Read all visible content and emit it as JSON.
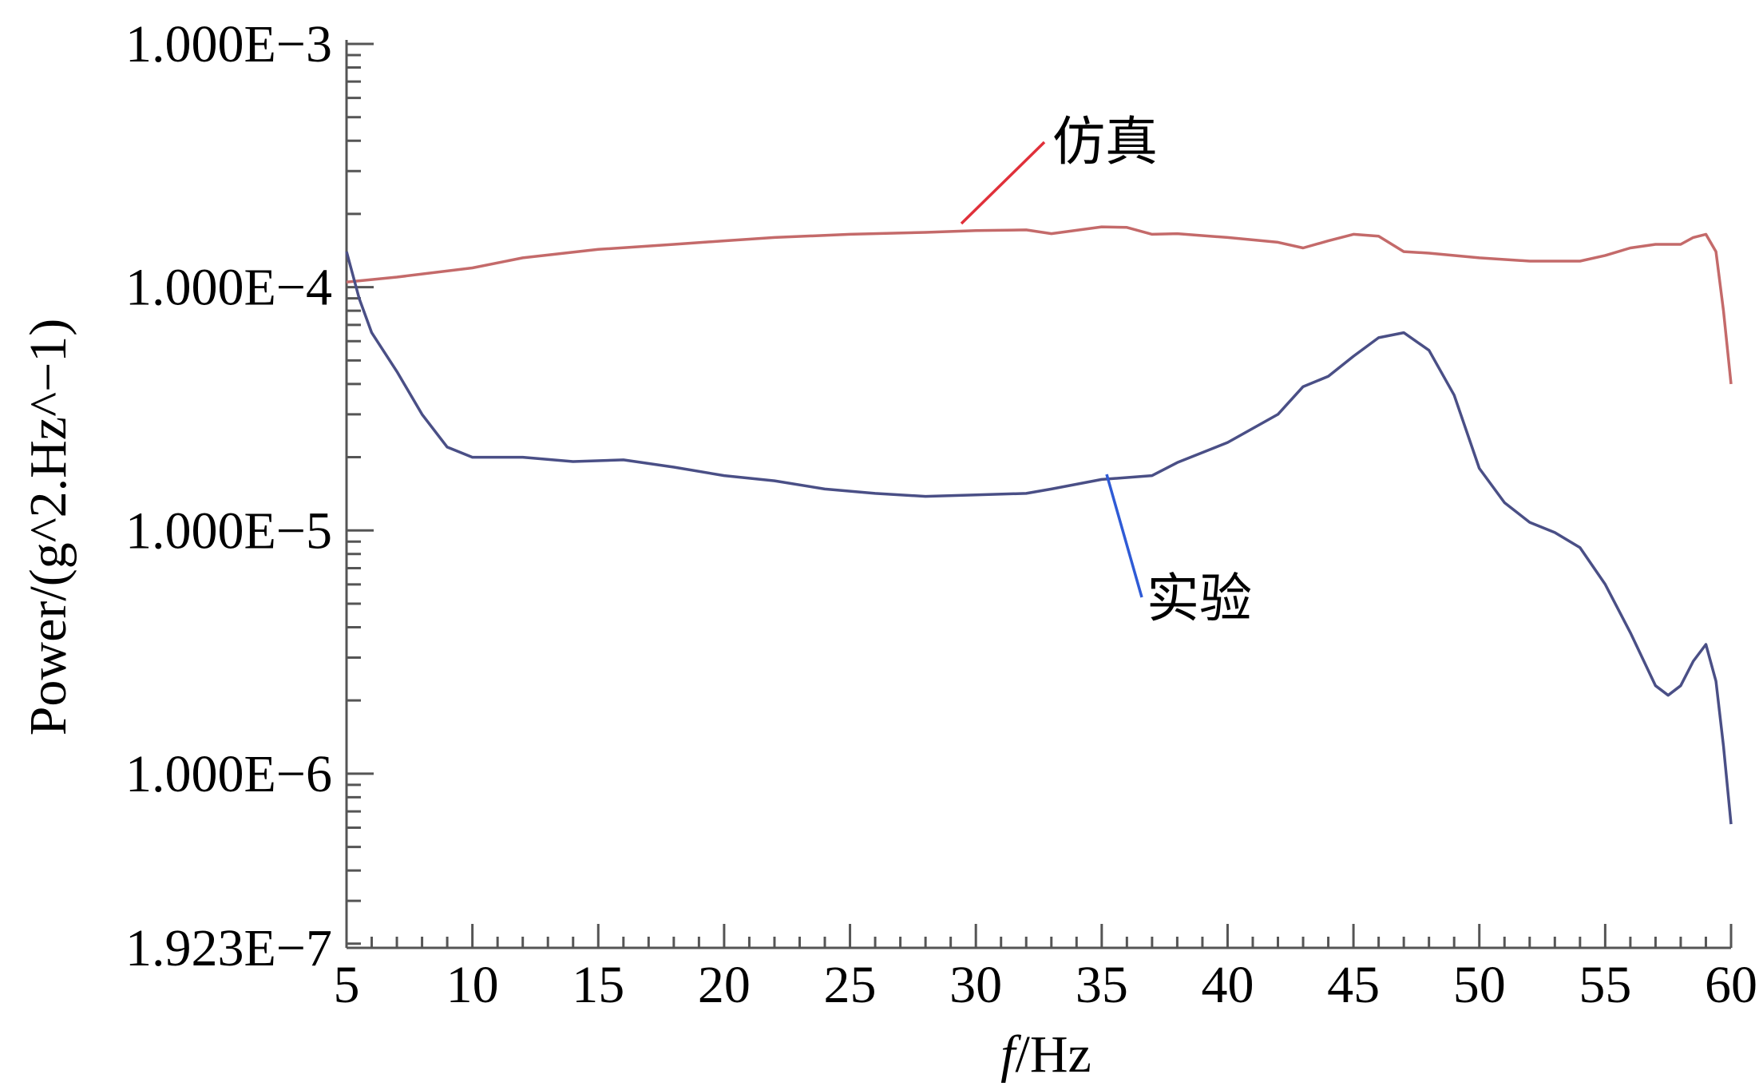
{
  "chart_data": {
    "type": "line",
    "xlabel_italic": "f",
    "xlabel_rest": "/Hz",
    "ylabel": "Power/(g^2.Hz^−1)",
    "xlim": [
      5,
      60
    ],
    "ylim": [
      1.923e-07,
      0.001
    ],
    "yscale": "log",
    "grid": false,
    "x_ticks": [
      "5",
      "10",
      "15",
      "20",
      "25",
      "30",
      "35",
      "40",
      "45",
      "50",
      "55",
      "60"
    ],
    "y_ticks": [
      {
        "value": 0.001,
        "label": "1.000E−3"
      },
      {
        "value": 0.0001,
        "label": "1.000E−4"
      },
      {
        "value": 1e-05,
        "label": "1.000E−5"
      },
      {
        "value": 1e-06,
        "label": "1.000E−6"
      },
      {
        "value": 1.923e-07,
        "label": "1.923E−7"
      }
    ],
    "series": [
      {
        "name": "仿真",
        "color": "#c46a6a",
        "points": [
          [
            5,
            0.000105
          ],
          [
            7,
            0.00011
          ],
          [
            10,
            0.00012
          ],
          [
            12,
            0.000132
          ],
          [
            15,
            0.000143
          ],
          [
            18,
            0.00015
          ],
          [
            20,
            0.000155
          ],
          [
            22,
            0.00016
          ],
          [
            25,
            0.000165
          ],
          [
            28,
            0.000168
          ],
          [
            30,
            0.000171
          ],
          [
            32,
            0.000172
          ],
          [
            33,
            0.000166
          ],
          [
            35,
            0.000177
          ],
          [
            36,
            0.000176
          ],
          [
            37,
            0.000165
          ],
          [
            38,
            0.000166
          ],
          [
            40,
            0.00016
          ],
          [
            42,
            0.000153
          ],
          [
            43,
            0.000145
          ],
          [
            44,
            0.000155
          ],
          [
            45,
            0.000165
          ],
          [
            46,
            0.000162
          ],
          [
            47,
            0.00014
          ],
          [
            48,
            0.000138
          ],
          [
            50,
            0.000132
          ],
          [
            52,
            0.000128
          ],
          [
            54,
            0.000128
          ],
          [
            55,
            0.000135
          ],
          [
            56,
            0.000145
          ],
          [
            57,
            0.00015
          ],
          [
            58,
            0.00015
          ],
          [
            58.5,
            0.00016
          ],
          [
            59,
            0.000165
          ],
          [
            59.4,
            0.00014
          ],
          [
            59.7,
            8e-05
          ],
          [
            60,
            4e-05
          ]
        ]
      },
      {
        "name": "实验",
        "color": "#4a4f86",
        "points": [
          [
            5,
            0.00014
          ],
          [
            5.5,
            9e-05
          ],
          [
            6,
            6.5e-05
          ],
          [
            7,
            4.5e-05
          ],
          [
            8,
            3e-05
          ],
          [
            9,
            2.2e-05
          ],
          [
            10,
            2e-05
          ],
          [
            12,
            2e-05
          ],
          [
            14,
            1.92e-05
          ],
          [
            16,
            1.95e-05
          ],
          [
            18,
            1.82e-05
          ],
          [
            20,
            1.68e-05
          ],
          [
            22,
            1.6e-05
          ],
          [
            24,
            1.48e-05
          ],
          [
            26,
            1.42e-05
          ],
          [
            28,
            1.38e-05
          ],
          [
            30,
            1.4e-05
          ],
          [
            32,
            1.42e-05
          ],
          [
            33,
            1.48e-05
          ],
          [
            35,
            1.62e-05
          ],
          [
            37,
            1.68e-05
          ],
          [
            38,
            1.9e-05
          ],
          [
            40,
            2.3e-05
          ],
          [
            42,
            3e-05
          ],
          [
            43,
            3.9e-05
          ],
          [
            44,
            4.3e-05
          ],
          [
            45,
            5.2e-05
          ],
          [
            46,
            6.2e-05
          ],
          [
            47,
            6.5e-05
          ],
          [
            48,
            5.5e-05
          ],
          [
            49,
            3.6e-05
          ],
          [
            50,
            1.8e-05
          ],
          [
            51,
            1.3e-05
          ],
          [
            52,
            1.08e-05
          ],
          [
            53,
            9.8e-06
          ],
          [
            54,
            8.5e-06
          ],
          [
            55,
            6e-06
          ],
          [
            56,
            3.8e-06
          ],
          [
            57,
            2.3e-06
          ],
          [
            57.5,
            2.1e-06
          ],
          [
            58,
            2.3e-06
          ],
          [
            58.5,
            2.9e-06
          ],
          [
            59,
            3.4e-06
          ],
          [
            59.4,
            2.4e-06
          ],
          [
            59.7,
            1.3e-06
          ],
          [
            60,
            6.2e-07
          ]
        ]
      }
    ],
    "annotations": [
      {
        "text": "仿真",
        "line_color": "#e0303a"
      },
      {
        "text": "实验",
        "line_color": "#2f5bd6"
      }
    ]
  }
}
